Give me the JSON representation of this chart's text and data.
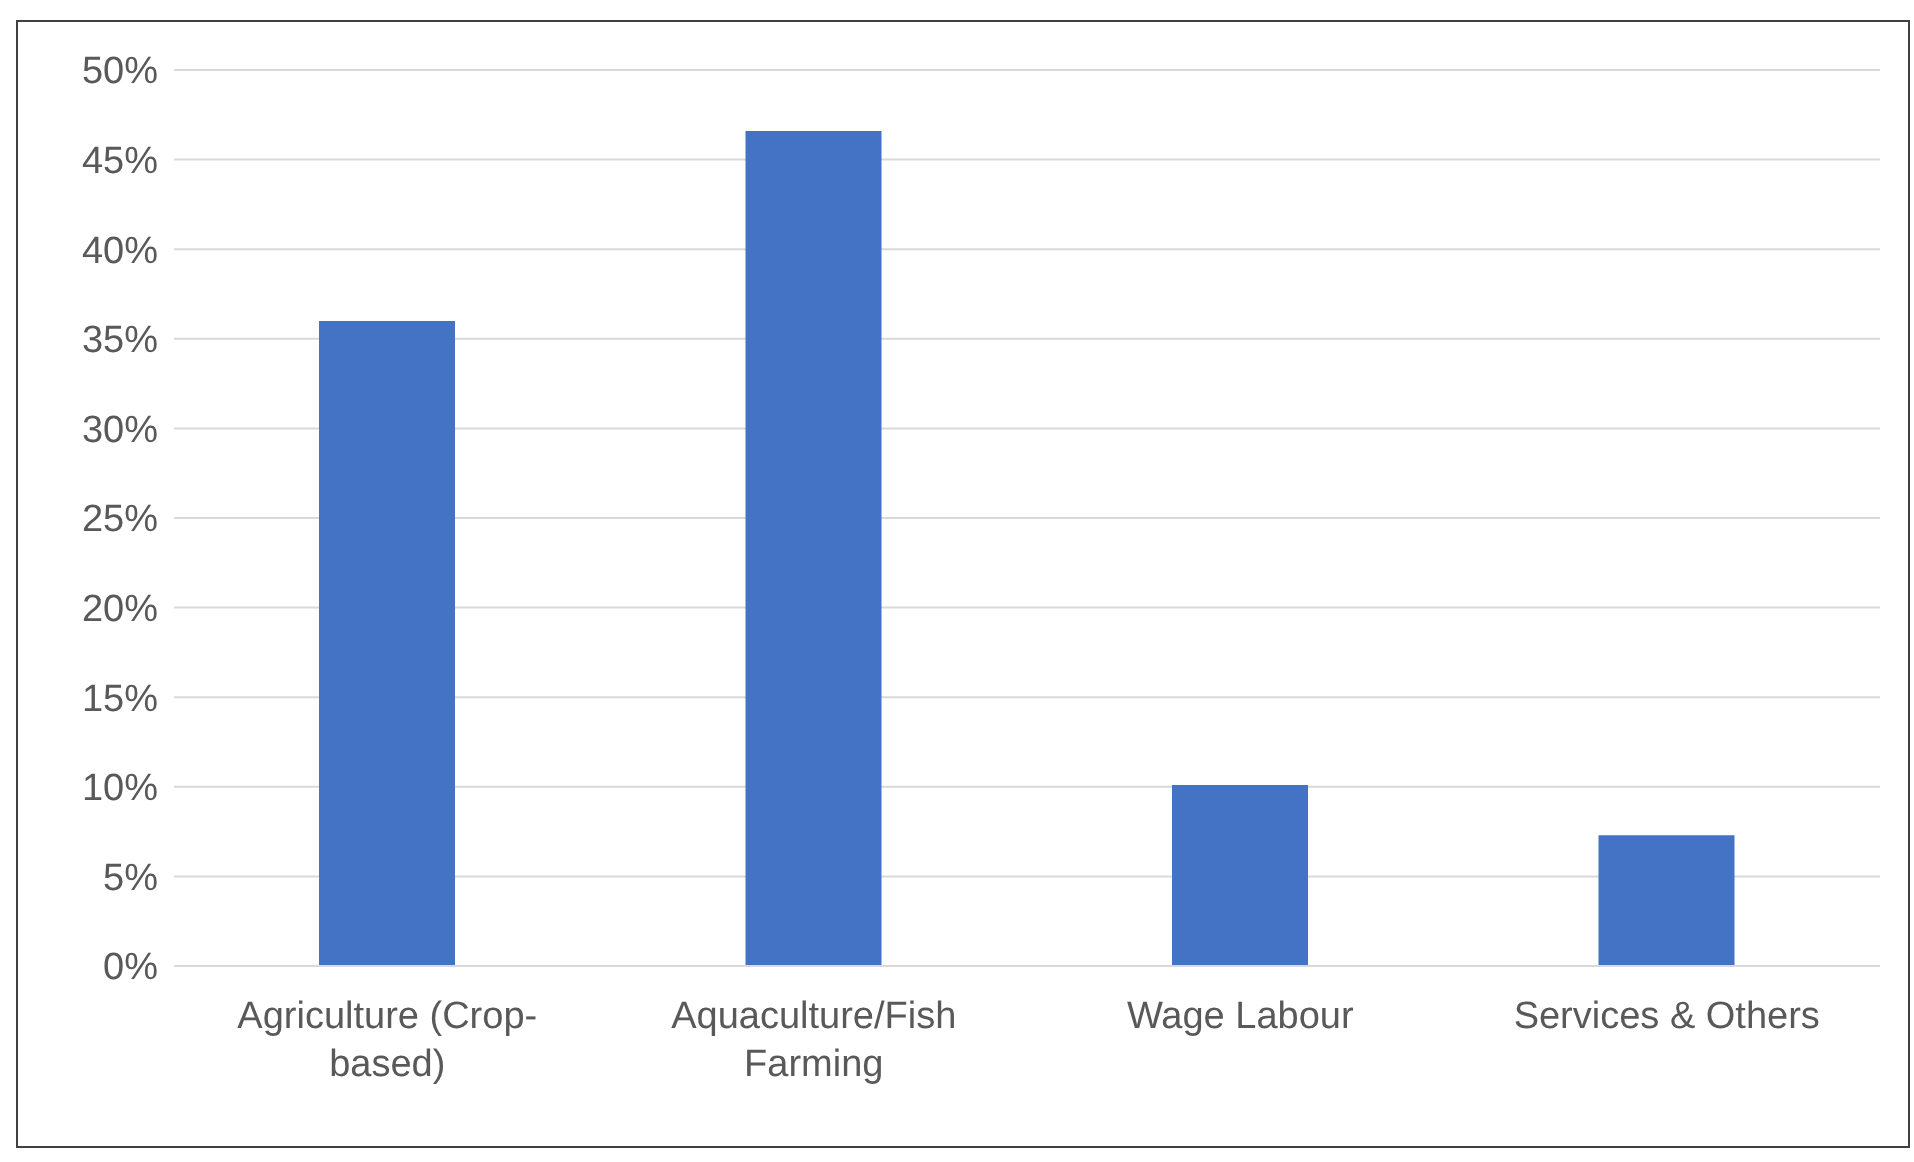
{
  "chart_data": {
    "type": "bar",
    "categories": [
      "Agriculture (Crop-based)",
      "Aquaculture/Fish Farming",
      "Wage Labour",
      "Services & Others"
    ],
    "values": [
      36,
      46.6,
      10.1,
      7.3
    ],
    "color": "#4472c4",
    "ylim": [
      0,
      50
    ],
    "yticks": [
      {
        "value": 0,
        "label": "0%"
      },
      {
        "value": 5,
        "label": "5%"
      },
      {
        "value": 10,
        "label": "10%"
      },
      {
        "value": 15,
        "label": "15%"
      },
      {
        "value": 20,
        "label": "20%"
      },
      {
        "value": 25,
        "label": "25%"
      },
      {
        "value": 30,
        "label": "30%"
      },
      {
        "value": 35,
        "label": "35%"
      },
      {
        "value": 40,
        "label": "40%"
      },
      {
        "value": 45,
        "label": "45%"
      },
      {
        "value": 50,
        "label": "50%"
      }
    ],
    "grid": "y",
    "legend": false
  }
}
